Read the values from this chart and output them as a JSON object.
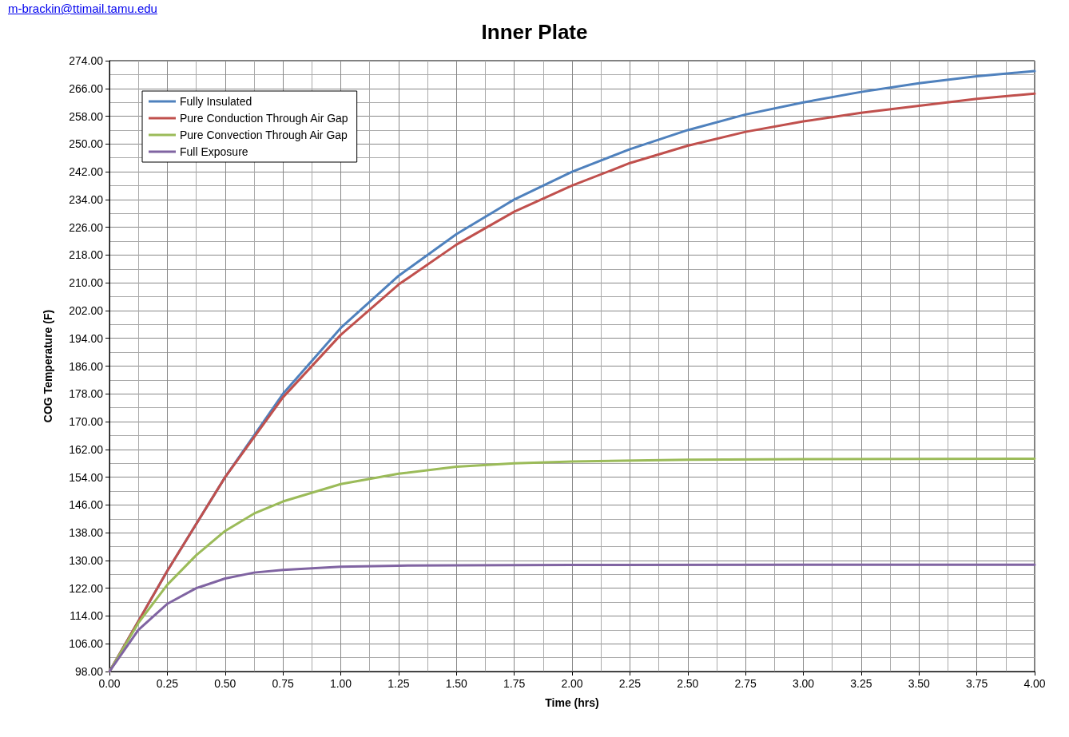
{
  "chart_data": {
    "type": "line",
    "title": "Inner Plate",
    "xlabel": "Time (hrs)",
    "ylabel": "COG Temperature (F)",
    "annotations": [
      "m-brackin@ttimail.tamu.edu"
    ],
    "xlim": [
      0,
      4
    ],
    "ylim": [
      98,
      274
    ],
    "xticks": [
      {
        "value": 0,
        "label": "0.00"
      },
      {
        "value": 0.25,
        "label": "0.25"
      },
      {
        "value": 0.5,
        "label": "0.50"
      },
      {
        "value": 0.75,
        "label": "0.75"
      },
      {
        "value": 1,
        "label": "1.00"
      },
      {
        "value": 1.25,
        "label": "1.25"
      },
      {
        "value": 1.5,
        "label": "1.50"
      },
      {
        "value": 1.75,
        "label": "1.75"
      },
      {
        "value": 2,
        "label": "2.00"
      },
      {
        "value": 2.25,
        "label": "2.25"
      },
      {
        "value": 2.5,
        "label": "2.50"
      },
      {
        "value": 2.75,
        "label": "2.75"
      },
      {
        "value": 3,
        "label": "3.00"
      },
      {
        "value": 3.25,
        "label": "3.25"
      },
      {
        "value": 3.5,
        "label": "3.50"
      },
      {
        "value": 3.75,
        "label": "3.75"
      },
      {
        "value": 4,
        "label": "4.00"
      }
    ],
    "yticks": [
      {
        "value": 98,
        "label": "98.00"
      },
      {
        "value": 106,
        "label": "106.00"
      },
      {
        "value": 114,
        "label": "114.00"
      },
      {
        "value": 122,
        "label": "122.00"
      },
      {
        "value": 130,
        "label": "130.00"
      },
      {
        "value": 138,
        "label": "138.00"
      },
      {
        "value": 146,
        "label": "146.00"
      },
      {
        "value": 154,
        "label": "154.00"
      },
      {
        "value": 162,
        "label": "162.00"
      },
      {
        "value": 170,
        "label": "170.00"
      },
      {
        "value": 178,
        "label": "178.00"
      },
      {
        "value": 186,
        "label": "186.00"
      },
      {
        "value": 194,
        "label": "194.00"
      },
      {
        "value": 202,
        "label": "202.00"
      },
      {
        "value": 210,
        "label": "210.00"
      },
      {
        "value": 218,
        "label": "218.00"
      },
      {
        "value": 226,
        "label": "226.00"
      },
      {
        "value": 234,
        "label": "234.00"
      },
      {
        "value": 242,
        "label": "242.00"
      },
      {
        "value": 250,
        "label": "250.00"
      },
      {
        "value": 258,
        "label": "258.00"
      },
      {
        "value": 266,
        "label": "266.00"
      },
      {
        "value": 274,
        "label": "274.00"
      }
    ],
    "grid": true,
    "legend": "top left",
    "marker": "none",
    "line_style": "solid",
    "series": [
      {
        "name": "Fully Insulated",
        "color": "#4f81bd",
        "x": [
          0,
          0.25,
          0.5,
          0.75,
          1,
          1.25,
          1.5,
          1.75,
          2,
          2.25,
          2.5,
          2.75,
          3,
          3.25,
          3.5,
          3.75,
          4
        ],
        "values": [
          98,
          127,
          154,
          178,
          197,
          212,
          224,
          234,
          242,
          248.5,
          254,
          258.5,
          262,
          265,
          267.5,
          269.5,
          271
        ]
      },
      {
        "name": "Pure Conduction Through Air Gap",
        "color": "#c0504d",
        "x": [
          0,
          0.25,
          0.5,
          0.75,
          1,
          1.25,
          1.5,
          1.75,
          2,
          2.25,
          2.5,
          2.75,
          3,
          3.25,
          3.5,
          3.75,
          4
        ],
        "values": [
          98,
          127,
          154,
          177,
          195,
          209.5,
          221,
          230.5,
          238,
          244.5,
          249.5,
          253.5,
          256.5,
          259,
          261,
          263,
          264.5
        ]
      },
      {
        "name": "Pure Convection Through Air Gap",
        "color": "#9bbb59",
        "x": [
          0,
          0.125,
          0.25,
          0.375,
          0.5,
          0.625,
          0.75,
          1,
          1.25,
          1.5,
          1.75,
          2,
          2.5,
          3,
          4
        ],
        "values": [
          98,
          112,
          123,
          131.5,
          138.5,
          143.5,
          147,
          152,
          155,
          157,
          158,
          158.5,
          159,
          159.2,
          159.3
        ]
      },
      {
        "name": "Full Exposure",
        "color": "#8064a2",
        "x": [
          0,
          0.125,
          0.25,
          0.375,
          0.5,
          0.625,
          0.75,
          1,
          1.25,
          1.5,
          2,
          3,
          4
        ],
        "values": [
          98,
          110,
          117.5,
          122,
          124.8,
          126.5,
          127.3,
          128.2,
          128.5,
          128.6,
          128.7,
          128.8,
          128.8
        ]
      }
    ]
  }
}
